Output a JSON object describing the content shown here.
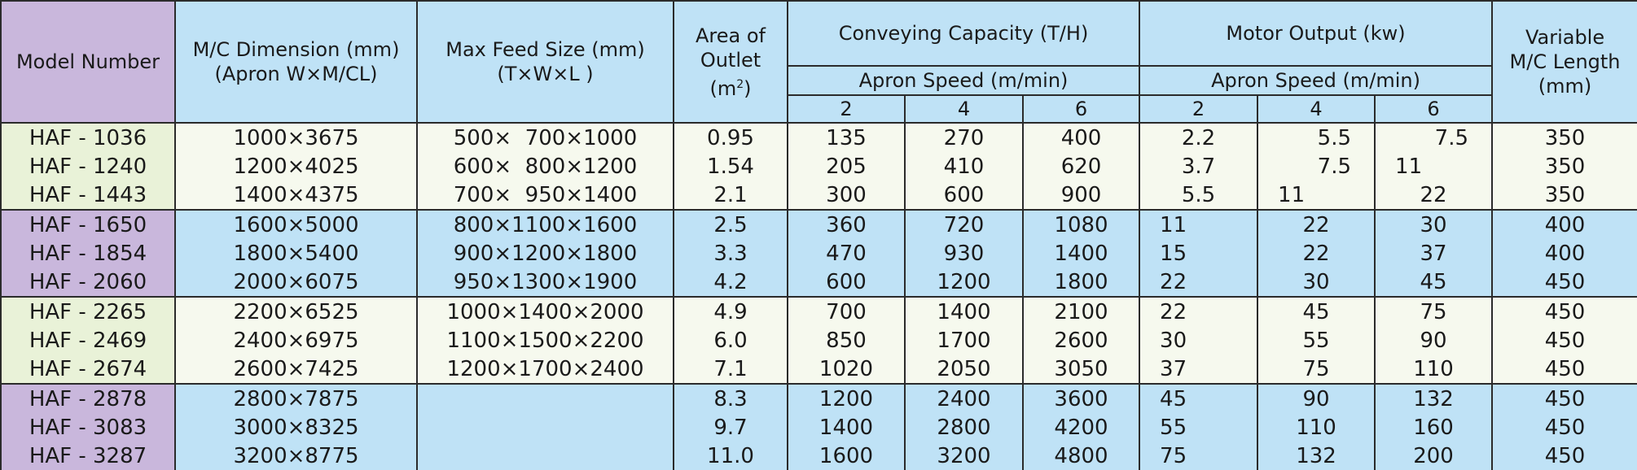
{
  "headers": {
    "model": "Model Number",
    "dimension_line1": "M/C Dimension (mm)",
    "dimension_line2": "(Apron W×M/CL)",
    "feed_line1": "Max Feed Size (mm)",
    "feed_line2": "(T×W×L )",
    "outlet_line1": "Area of",
    "outlet_line2": "Outlet",
    "outlet_unit": "(m",
    "outlet_unit_sup": "2",
    "outlet_unit_close": ")",
    "capacity": "Conveying Capacity (T/H)",
    "motor": "Motor Output (kw)",
    "apron_speed": "Apron Speed (m/min)",
    "speeds": [
      "2",
      "4",
      "6"
    ],
    "length_line1": "Variable",
    "length_line2": "M/C Length",
    "length_line3": "(mm)"
  },
  "rows": [
    {
      "model": "HAF - 1036",
      "dimension": "1000×3675",
      "feed": "500×  700×1000",
      "outlet": "0.95",
      "cap": [
        "135",
        "270",
        "400"
      ],
      "motor": [
        "2.2",
        "5.5",
        "7.5"
      ],
      "length": "350"
    },
    {
      "model": "HAF - 1240",
      "dimension": "1200×4025",
      "feed": "600×  800×1200",
      "outlet": "1.54",
      "cap": [
        "205",
        "410",
        "620"
      ],
      "motor": [
        "3.7",
        "7.5",
        "11"
      ],
      "length": "350"
    },
    {
      "model": "HAF - 1443",
      "dimension": "1400×4375",
      "feed": "700×  950×1400",
      "outlet": "2.1",
      "cap": [
        "300",
        "600",
        "900"
      ],
      "motor": [
        "5.5",
        "11",
        "22"
      ],
      "length": "350"
    },
    {
      "model": "HAF - 1650",
      "dimension": "1600×5000",
      "feed": "800×1100×1600",
      "outlet": "2.5",
      "cap": [
        "360",
        "720",
        "1080"
      ],
      "motor": [
        "11",
        "22",
        "30"
      ],
      "length": "400"
    },
    {
      "model": "HAF - 1854",
      "dimension": "1800×5400",
      "feed": "900×1200×1800",
      "outlet": "3.3",
      "cap": [
        "470",
        "930",
        "1400"
      ],
      "motor": [
        "15",
        "22",
        "37"
      ],
      "length": "400"
    },
    {
      "model": "HAF - 2060",
      "dimension": "2000×6075",
      "feed": "950×1300×1900",
      "outlet": "4.2",
      "cap": [
        "600",
        "1200",
        "1800"
      ],
      "motor": [
        "22",
        "30",
        "45"
      ],
      "length": "450"
    },
    {
      "model": "HAF - 2265",
      "dimension": "2200×6525",
      "feed": "1000×1400×2000",
      "outlet": "4.9",
      "cap": [
        "700",
        "1400",
        "2100"
      ],
      "motor": [
        "22",
        "45",
        "75"
      ],
      "length": "450"
    },
    {
      "model": "HAF - 2469",
      "dimension": "2400×6975",
      "feed": "1100×1500×2200",
      "outlet": "6.0",
      "cap": [
        "850",
        "1700",
        "2600"
      ],
      "motor": [
        "30",
        "55",
        "90"
      ],
      "length": "450"
    },
    {
      "model": "HAF - 2674",
      "dimension": "2600×7425",
      "feed": "1200×1700×2400",
      "outlet": "7.1",
      "cap": [
        "1020",
        "2050",
        "3050"
      ],
      "motor": [
        "37",
        "75",
        "110"
      ],
      "length": "450"
    },
    {
      "model": "HAF - 2878",
      "dimension": "2800×7875",
      "feed": "",
      "outlet": "8.3",
      "cap": [
        "1200",
        "2400",
        "3600"
      ],
      "motor": [
        "45",
        "90",
        "132"
      ],
      "length": "450"
    },
    {
      "model": "HAF - 3083",
      "dimension": "3000×8325",
      "feed": "",
      "outlet": "9.7",
      "cap": [
        "1400",
        "2800",
        "4200"
      ],
      "motor": [
        "55",
        "110",
        "160"
      ],
      "length": "450"
    },
    {
      "model": "HAF - 3287",
      "dimension": "3200×8775",
      "feed": "",
      "outlet": "11.0",
      "cap": [
        "1600",
        "3200",
        "4800"
      ],
      "motor": [
        "75",
        "132",
        "200"
      ],
      "length": "450"
    }
  ],
  "colors": {
    "header_blue": "#bfe2f6",
    "model_purple": "#c9b7dc",
    "light_row": "#f6f9ee",
    "light_model": "#e9f2d8",
    "border": "#2b2b2b"
  }
}
